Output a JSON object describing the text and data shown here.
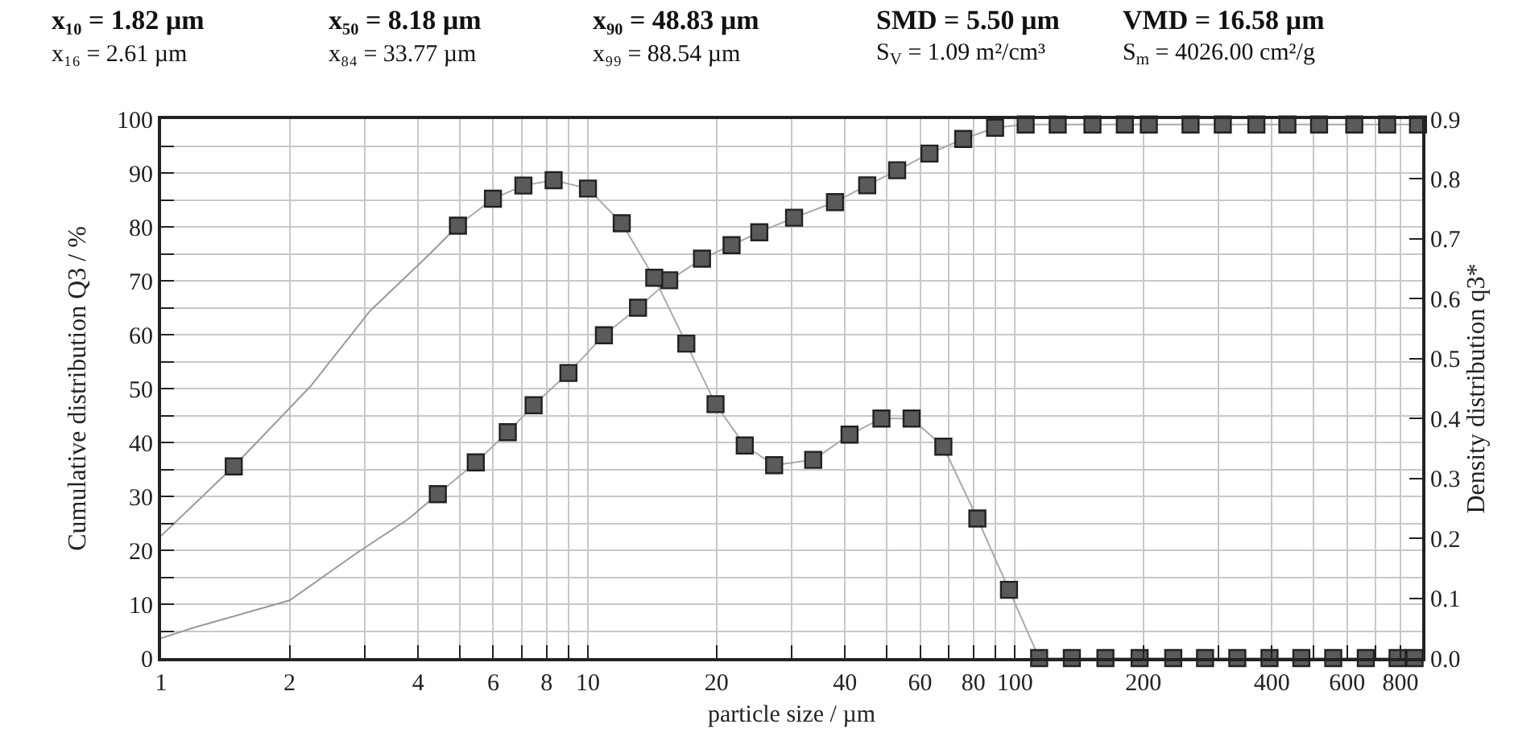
{
  "chart_data": {
    "type": "line",
    "xlabel": "particle size / µm",
    "ylabel": "Cumulative distribution Q3 / %",
    "y2label": "Density distribution q3*",
    "annotations": [
      "x₁₀ = 1.82 µm",
      "x₅₀ = 8.18 µm",
      "x₉₀ = 48.83 µm",
      "SMD = 5.50 µm",
      "VMD = 16.58 µm",
      "x₁₆ = 2.61 µm",
      "x₈₄ = 33.77 µm",
      "x₉₉ = 88.54 µm",
      "S$_{V}$ = 1.09 m²/cm³",
      "S$_{m}$ = 4026.00 cm²/g"
    ],
    "log": "x",
    "grid": true,
    "marker": "square",
    "line_style": "solid",
    "xlim": [
      1,
      900
    ],
    "xticks": [
      1,
      2,
      {
        "value": 3,
        "label": null
      },
      4,
      {
        "value": 5,
        "label": null
      },
      6,
      {
        "value": 7,
        "label": null
      },
      8,
      {
        "value": 9,
        "label": null
      },
      10,
      20,
      {
        "value": 30,
        "label": null
      },
      40,
      {
        "value": 50,
        "label": null
      },
      60,
      {
        "value": 70,
        "label": null
      },
      80,
      {
        "value": 90,
        "label": null
      },
      100,
      200,
      {
        "value": 300,
        "label": null
      },
      400,
      {
        "value": 500,
        "label": null
      },
      600,
      {
        "value": 700,
        "label": null
      },
      800,
      {
        "value": 900,
        "label": null
      }
    ],
    "ylim": [
      0,
      100
    ],
    "yticks": [
      0,
      {
        "value": 5,
        "label": null
      },
      10,
      {
        "value": 15,
        "label": null
      },
      20,
      {
        "value": 25,
        "label": null
      },
      30,
      {
        "value": 35,
        "label": null
      },
      40,
      {
        "value": 45,
        "label": null
      },
      50,
      {
        "value": 55,
        "label": null
      },
      60,
      {
        "value": 65,
        "label": null
      },
      70,
      {
        "value": 75,
        "label": null
      },
      80,
      {
        "value": 85,
        "label": null
      },
      90,
      {
        "value": 95,
        "label": null
      },
      100
    ],
    "y2lim": [
      0,
      0.9
    ],
    "y2ticks": [
      {
        "value": 0,
        "label": "0.0"
      },
      0.1,
      0.2,
      0.3,
      0.4,
      0.5,
      0.6,
      0.7,
      0.8,
      0.9
    ],
    "series": [
      {
        "color": "#999999",
        "marker": "none",
        "x": [
          1,
          1.2,
          2.0,
          2.9,
          3.78,
          4.45
        ],
        "values": [
          3.7,
          5.7,
          10.7,
          19.7,
          25.7,
          30.4
        ]
      },
      {
        "color": "#999999",
        "marker": "none",
        "axis": "y2",
        "x": [
          1,
          1.48,
          2.24,
          3.09,
          4.25,
          4.96
        ],
        "values": [
          0.204,
          0.32,
          0.454,
          0.58,
          0.674,
          0.722
        ]
      },
      {
        "color": "#5a5a5a",
        "x": [
          4.45,
          5.46,
          6.49,
          7.46,
          9.0,
          10.9,
          13.1,
          15.5,
          18.5,
          21.7,
          25.2,
          30.4,
          37.9,
          45.1,
          53.0,
          63.1,
          75.7,
          89.9,
          106,
          126,
          152,
          181,
          206,
          258,
          307,
          368,
          435,
          516,
          624,
          745,
          880
        ],
        "values": [
          30.4,
          36.3,
          41.9,
          46.9,
          52.9,
          59.9,
          65,
          70.1,
          74.1,
          76.6,
          79.0,
          81.7,
          84.6,
          87.7,
          90.5,
          93.6,
          96.3,
          98.4,
          99,
          99,
          99,
          99,
          99,
          99,
          99,
          99,
          99,
          99,
          99,
          99,
          99
        ]
      },
      {
        "color": "#5a5a5a",
        "axis": "y2",
        "type": "scatter",
        "x": [
          1.48
        ],
        "values": [
          0.32
        ]
      },
      {
        "color": "#5a5a5a",
        "axis": "y2",
        "x": [
          4.96,
          5.99,
          7.06,
          8.31,
          10.0,
          12.0,
          14.3,
          17.0,
          19.9,
          23.3,
          27.3,
          33.7,
          41.0,
          48.7,
          57.3,
          68.0,
          81.7,
          96.9,
          114,
          136,
          163,
          196,
          235,
          279,
          332,
          395,
          469,
          557,
          664,
          788,
          864
        ],
        "values": [
          0.722,
          0.767,
          0.789,
          0.798,
          0.784,
          0.726,
          0.635,
          0.525,
          0.424,
          0.355,
          0.322,
          0.331,
          0.373,
          0.4,
          0.4,
          0.353,
          0.233,
          0.114,
          0,
          0,
          0,
          0,
          0,
          0,
          0,
          0,
          0,
          0,
          0,
          0,
          0
        ]
      }
    ]
  }
}
